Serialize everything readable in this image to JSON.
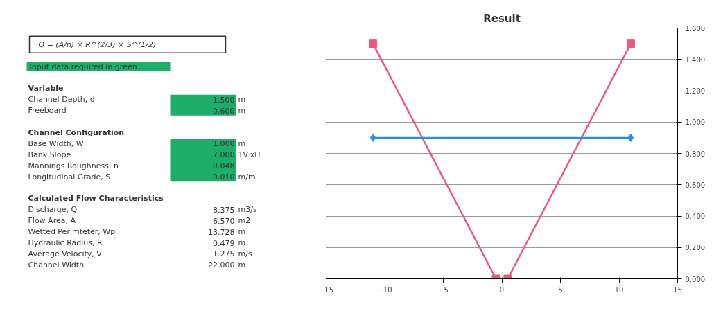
{
  "chart_data": [
    {
      "type": "other",
      "annotations": [
        "Q = (A/n) × R^(2/3) × S^(1/2)",
        "Input data required in green",
        "Variable",
        "Channel Depth, d",
        "1.500",
        "m",
        "Freeboard",
        "0.600",
        "m",
        "Channel Configuration",
        "Base Width, W",
        "1.000",
        "m",
        "Bank Slope",
        "7.000",
        "1V:xH",
        "Mannings Roughness, n",
        "0.048",
        "Longitudinal Grade, S",
        "0.010",
        "m/m",
        "Calculated Flow Characteristics",
        "Discharge, Q",
        "8.375",
        "m3/s",
        "Flow Area, A",
        "6.570",
        "m2",
        "Wetted Perimteter, Wp",
        "13.728",
        "m",
        "Hydraulic Radius, R",
        "0.479",
        "m",
        "Average Velocity, V",
        "1.275",
        "m/s",
        "Channel Width",
        "22.000",
        "m"
      ]
    },
    {
      "type": "line",
      "title": "Result",
      "xlim": [
        -15,
        15
      ],
      "xticks": [
        -15,
        -10,
        -5,
        0,
        5,
        10,
        15
      ],
      "ylim": [
        0,
        1.6
      ],
      "yticks": [
        {
          "value": 0,
          "label": "0.000"
        },
        {
          "value": 0.2,
          "label": "0.200"
        },
        {
          "value": 0.4,
          "label": "0.400"
        },
        {
          "value": 0.6,
          "label": "0.600"
        },
        {
          "value": 0.8,
          "label": "0.800"
        },
        {
          "value": 1.0,
          "label": "1.000"
        },
        {
          "value": 1.2,
          "label": "1.200"
        },
        {
          "value": 1.4,
          "label": "1.400"
        },
        {
          "value": 1.6,
          "label": "1.600"
        }
      ],
      "grid": "y",
      "line_style": "solid",
      "series": [
        {
          "color": "#e85a7c",
          "marker": "square",
          "x": [
            -11,
            -0.5,
            0.5,
            11
          ],
          "values": [
            1.5,
            0,
            0,
            1.5
          ]
        },
        {
          "color": "#2a8fe0",
          "marker": "diamond",
          "x": [
            -11,
            11
          ],
          "values": [
            0.9,
            0.9
          ]
        }
      ]
    }
  ]
}
